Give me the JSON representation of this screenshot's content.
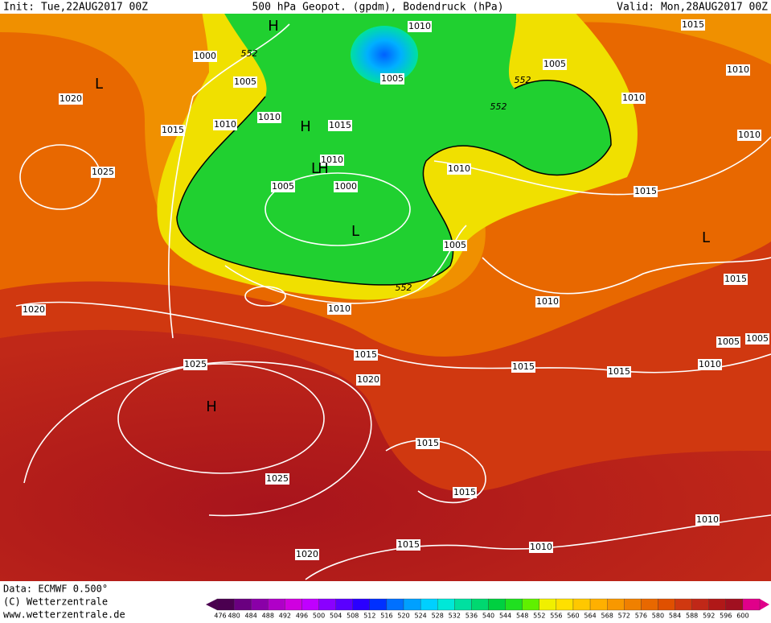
{
  "header": {
    "init": "Init: Tue,22AUG2017 00Z",
    "title": "500 hPa Geopot. (gpdm), Bodendruck (hPa)",
    "valid": "Valid: Mon,28AUG2017 00Z"
  },
  "footer": {
    "data": "Data: ECMWF  0.500°",
    "copyright": "(C) Wetterzentrale",
    "url": "www.wetterzentrale.de"
  },
  "isobar_labels": [
    "1020",
    "1015",
    "1025",
    "1000",
    "1005",
    "1010",
    "1010",
    "1015",
    "1010",
    "1005",
    "1000",
    "1010",
    "1005",
    "1005",
    "1010",
    "1015",
    "1010",
    "1010",
    "1010",
    "1015",
    "1005",
    "1015",
    "1010",
    "1010",
    "1020",
    "1015",
    "1020",
    "1015",
    "1015",
    "1010",
    "1005",
    "1005",
    "1025",
    "1025",
    "1015",
    "1015",
    "1010",
    "1020",
    "1015",
    "1010"
  ],
  "contour_labels": [
    "552",
    "552",
    "552",
    "552"
  ],
  "centers": [
    "L",
    "H",
    "H",
    "L",
    "H",
    "L",
    "L",
    "H"
  ],
  "colorbar": {
    "labels": [
      476,
      480,
      484,
      488,
      492,
      496,
      500,
      504,
      508,
      512,
      516,
      520,
      524,
      528,
      532,
      536,
      540,
      544,
      548,
      552,
      556,
      560,
      564,
      568,
      572,
      576,
      580,
      584,
      588,
      592,
      596,
      600
    ],
    "colors": [
      "#4b0050",
      "#6a0080",
      "#8a00a8",
      "#b000c8",
      "#d000e0",
      "#c000ff",
      "#8a00ff",
      "#5a00ff",
      "#2a00ff",
      "#0030ff",
      "#0070ff",
      "#00a0ff",
      "#00d0ff",
      "#00e8d8",
      "#00e0a0",
      "#00d870",
      "#00d040",
      "#20e020",
      "#60f000",
      "#f0f000",
      "#ffe000",
      "#ffc800",
      "#ffb000",
      "#f89800",
      "#f08000",
      "#e86800",
      "#e05000",
      "#d03810",
      "#c02818",
      "#b01818",
      "#a01020",
      "#e0008a"
    ]
  }
}
